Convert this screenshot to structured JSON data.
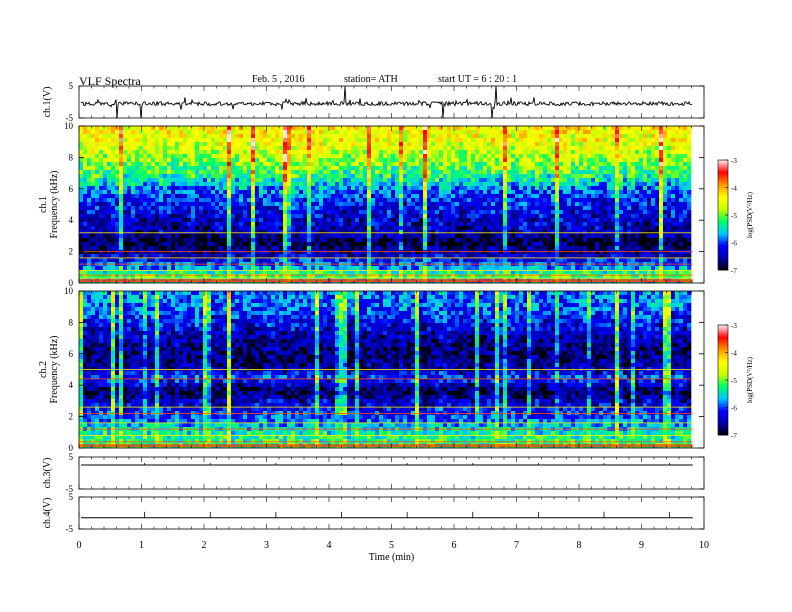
{
  "header": {
    "title": "VLF  Spectra",
    "date": "Feb. 5  , 2016",
    "station": "station= ATH",
    "start": "start  UT  =   6  : 20 : 1"
  },
  "colors": {
    "trace": "#000000",
    "colormap": [
      "#000000",
      "#0000aa",
      "#0000ff",
      "#00c8ff",
      "#00ff66",
      "#ccff00",
      "#ffff00",
      "#ff9900",
      "#ff0000",
      "#ffe6e6"
    ]
  },
  "chart_data": [
    {
      "type": "line",
      "panel": "ch1-waveform",
      "ylabel": "ch.1(V)",
      "ylim": [
        -5,
        5
      ],
      "yticks": [
        "5",
        "-5"
      ],
      "series": [
        {
          "values": [
            -0.5
          ]
        }
      ],
      "note_values": "noisy trace around -0.5 V with spikes up to 5 and down to -5"
    },
    {
      "type": "heatmap",
      "panel": "ch1-spectrogram",
      "ylabel": "ch.1\nFrequency  (kHz)",
      "ylim": [
        0,
        10
      ],
      "yticks": [
        "0",
        "2",
        "4",
        "6",
        "8",
        "10"
      ],
      "colorbar": {
        "label": "log(PSD(V²/Hz)",
        "range": [
          -7,
          -3
        ],
        "ticks": [
          "-3",
          "-4",
          "-5",
          "-6",
          "-7"
        ]
      },
      "profile": [
        {
          "f": 0.2,
          "v": -5.5
        },
        {
          "f": 0.5,
          "v": -5.0
        },
        {
          "f": 1.0,
          "v": -5.8
        },
        {
          "f": 2.0,
          "v": -6.6
        },
        {
          "f": 2.6,
          "v": -6.9
        },
        {
          "f": 3.2,
          "v": -6.5
        },
        {
          "f": 4.0,
          "v": -6.4
        },
        {
          "f": 5.0,
          "v": -6.2
        },
        {
          "f": 6.0,
          "v": -5.8
        },
        {
          "f": 7.0,
          "v": -5.2
        },
        {
          "f": 8.0,
          "v": -4.8
        },
        {
          "f": 9.0,
          "v": -4.5
        },
        {
          "f": 10.0,
          "v": -4.4
        }
      ],
      "lines_khz": [
        0.1,
        0.3,
        0.5,
        0.8,
        1.2,
        1.6,
        2.0,
        3.2
      ]
    },
    {
      "type": "heatmap",
      "panel": "ch2-spectrogram",
      "ylabel": "ch.2\nFrequency  (kHz)",
      "ylim": [
        0,
        10
      ],
      "yticks": [
        "0",
        "2",
        "4",
        "6",
        "8",
        "10"
      ],
      "colorbar": {
        "label": "log(PSD(V²/Hz)",
        "range": [
          -7,
          -3
        ],
        "ticks": [
          "-3",
          "-4",
          "-5",
          "-6",
          "-7"
        ]
      },
      "profile": [
        {
          "f": 0.2,
          "v": -5.2
        },
        {
          "f": 1.0,
          "v": -5.4
        },
        {
          "f": 2.0,
          "v": -6.0
        },
        {
          "f": 3.0,
          "v": -6.4
        },
        {
          "f": 3.6,
          "v": -6.8
        },
        {
          "f": 4.5,
          "v": -6.0
        },
        {
          "f": 5.0,
          "v": -6.5
        },
        {
          "f": 6.0,
          "v": -6.7
        },
        {
          "f": 7.0,
          "v": -6.5
        },
        {
          "f": 8.0,
          "v": -6.2
        },
        {
          "f": 9.0,
          "v": -5.9
        },
        {
          "f": 10.0,
          "v": -5.8
        }
      ],
      "lines_khz": [
        0.4,
        0.8,
        1.2,
        1.6,
        2.2,
        2.6,
        4.4,
        5.0
      ]
    },
    {
      "type": "line",
      "panel": "ch3-waveform",
      "ylabel": "ch.3(V)",
      "ylim": [
        -5,
        5
      ],
      "yticks": [
        "5",
        "-5"
      ],
      "series": [
        {
          "values": [
            2.5
          ]
        }
      ]
    },
    {
      "type": "line",
      "panel": "ch4-waveform",
      "ylabel": "ch.4(V)",
      "ylim": [
        -5,
        5
      ],
      "yticks": [
        "5",
        "-5"
      ],
      "series": [
        {
          "values": [
            -1.5
          ]
        }
      ]
    }
  ],
  "time_axis": {
    "xlabel": "Time  (min)",
    "xlim": [
      0,
      10
    ],
    "ticks": [
      "0",
      "1",
      "2",
      "3",
      "4",
      "5",
      "6",
      "7",
      "8",
      "9",
      "10"
    ],
    "data_end": 9.82
  }
}
